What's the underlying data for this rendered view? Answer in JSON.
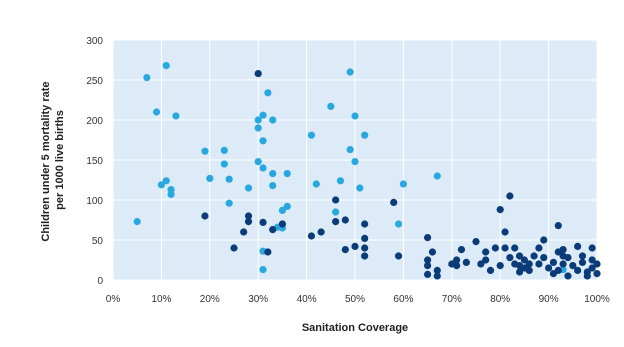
{
  "chart_data": {
    "type": "scatter",
    "title": "",
    "xlabel": "Sanitation Coverage",
    "ylabel_lines": [
      "Children under 5 mortality rate",
      "per 1000 live births"
    ],
    "xlim": [
      0,
      100
    ],
    "ylim": [
      0,
      300
    ],
    "x_ticks": [
      0,
      10,
      20,
      30,
      40,
      50,
      60,
      70,
      80,
      90,
      100
    ],
    "x_tick_labels": [
      "0%",
      "10%",
      "20%",
      "30%",
      "40%",
      "50%",
      "60%",
      "70%",
      "80%",
      "90%",
      "100%"
    ],
    "y_ticks": [
      0,
      50,
      100,
      150,
      200,
      250,
      300
    ],
    "y_tick_labels": [
      "0",
      "50",
      "100",
      "150",
      "200",
      "250",
      "300"
    ],
    "grid": true,
    "legend": "none",
    "colors": {
      "light": "#29a8df",
      "dark": "#0b3c78",
      "plot_bg": "#dcebf7",
      "grid": "#ffffff"
    },
    "series": [
      {
        "color": "#29a8df",
        "points": [
          [
            5,
            73
          ],
          [
            7,
            253
          ],
          [
            9,
            210
          ],
          [
            10,
            119
          ],
          [
            11,
            268
          ],
          [
            11,
            124
          ],
          [
            12,
            113
          ],
          [
            12,
            107
          ],
          [
            13,
            205
          ],
          [
            19,
            161
          ],
          [
            20,
            127
          ],
          [
            23,
            162
          ],
          [
            23,
            145
          ],
          [
            24,
            126
          ],
          [
            24,
            96
          ],
          [
            28,
            115
          ],
          [
            30,
            190
          ],
          [
            30,
            148
          ],
          [
            30,
            200
          ],
          [
            31,
            206
          ],
          [
            31,
            174
          ],
          [
            31,
            140
          ],
          [
            31,
            13
          ],
          [
            31,
            36
          ],
          [
            32,
            234
          ],
          [
            33,
            133
          ],
          [
            33,
            118
          ],
          [
            33,
            200
          ],
          [
            34,
            66
          ],
          [
            35,
            87
          ],
          [
            35,
            70
          ],
          [
            35,
            65
          ],
          [
            36,
            133
          ],
          [
            36,
            92
          ],
          [
            41,
            181
          ],
          [
            42,
            120
          ],
          [
            45,
            217
          ],
          [
            46,
            85
          ],
          [
            47,
            124
          ],
          [
            49,
            260
          ],
          [
            49,
            163
          ],
          [
            50,
            205
          ],
          [
            50,
            148
          ],
          [
            51,
            115
          ],
          [
            52,
            181
          ],
          [
            59,
            70
          ],
          [
            60,
            120
          ],
          [
            67,
            130
          ],
          [
            93,
            13
          ]
        ]
      },
      {
        "color": "#0b3c78",
        "points": [
          [
            19,
            80
          ],
          [
            25,
            40
          ],
          [
            27,
            60
          ],
          [
            28,
            80
          ],
          [
            28,
            73
          ],
          [
            30,
            258
          ],
          [
            31,
            72
          ],
          [
            32,
            35
          ],
          [
            33,
            63
          ],
          [
            35,
            70
          ],
          [
            41,
            55
          ],
          [
            43,
            60
          ],
          [
            46,
            100
          ],
          [
            46,
            73
          ],
          [
            48,
            38
          ],
          [
            48,
            75
          ],
          [
            50,
            42
          ],
          [
            52,
            70
          ],
          [
            52,
            52
          ],
          [
            52,
            40
          ],
          [
            52,
            30
          ],
          [
            58,
            97
          ],
          [
            59,
            30
          ],
          [
            65,
            53
          ],
          [
            65,
            25
          ],
          [
            65,
            18
          ],
          [
            65,
            7
          ],
          [
            66,
            35
          ],
          [
            67,
            12
          ],
          [
            67,
            5
          ],
          [
            70,
            20
          ],
          [
            71,
            25
          ],
          [
            71,
            18
          ],
          [
            72,
            38
          ],
          [
            73,
            22
          ],
          [
            75,
            48
          ],
          [
            76,
            20
          ],
          [
            77,
            35
          ],
          [
            77,
            25
          ],
          [
            78,
            12
          ],
          [
            79,
            40
          ],
          [
            80,
            88
          ],
          [
            80,
            18
          ],
          [
            81,
            60
          ],
          [
            81,
            40
          ],
          [
            82,
            105
          ],
          [
            82,
            28
          ],
          [
            83,
            40
          ],
          [
            83,
            20
          ],
          [
            84,
            30
          ],
          [
            84,
            18
          ],
          [
            84,
            10
          ],
          [
            85,
            25
          ],
          [
            85,
            15
          ],
          [
            86,
            20
          ],
          [
            86,
            12
          ],
          [
            87,
            30
          ],
          [
            88,
            40
          ],
          [
            88,
            20
          ],
          [
            89,
            50
          ],
          [
            89,
            28
          ],
          [
            90,
            15
          ],
          [
            91,
            22
          ],
          [
            91,
            8
          ],
          [
            92,
            68
          ],
          [
            92,
            35
          ],
          [
            92,
            12
          ],
          [
            93,
            30
          ],
          [
            93,
            20
          ],
          [
            93,
            38
          ],
          [
            94,
            28
          ],
          [
            94,
            5
          ],
          [
            95,
            18
          ],
          [
            96,
            42
          ],
          [
            96,
            12
          ],
          [
            97,
            30
          ],
          [
            97,
            22
          ],
          [
            98,
            10
          ],
          [
            98,
            5
          ],
          [
            99,
            40
          ],
          [
            99,
            25
          ],
          [
            99,
            15
          ],
          [
            100,
            20
          ],
          [
            100,
            8
          ]
        ]
      }
    ]
  }
}
